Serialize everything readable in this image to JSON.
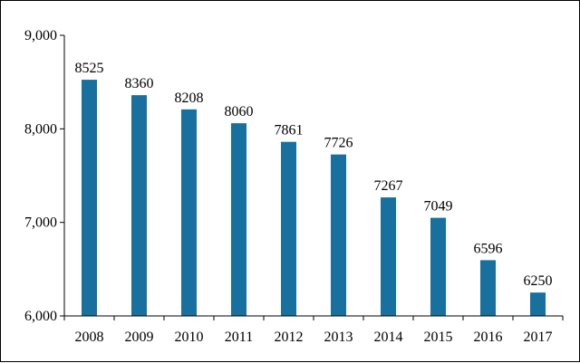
{
  "chart_data": {
    "type": "bar",
    "categories": [
      "2008",
      "2009",
      "2010",
      "2011",
      "2012",
      "2013",
      "2014",
      "2015",
      "2016",
      "2017"
    ],
    "values": [
      8525,
      8360,
      8208,
      8060,
      7861,
      7726,
      7267,
      7049,
      6596,
      6250
    ],
    "data_labels": [
      "8525",
      "8360",
      "8208",
      "8060",
      "7861",
      "7726",
      "7267",
      "7049",
      "6596",
      "6250"
    ],
    "title": "",
    "xlabel": "",
    "ylabel": "",
    "ylim": [
      6000,
      9000
    ],
    "yticks": [
      6000,
      7000,
      8000,
      9000
    ],
    "ytick_labels": [
      "6,000",
      "7,000",
      "8,000",
      "9,000"
    ],
    "grid": false,
    "legend": "none",
    "bar_color": "#17709e",
    "axis_color": "#000000"
  }
}
